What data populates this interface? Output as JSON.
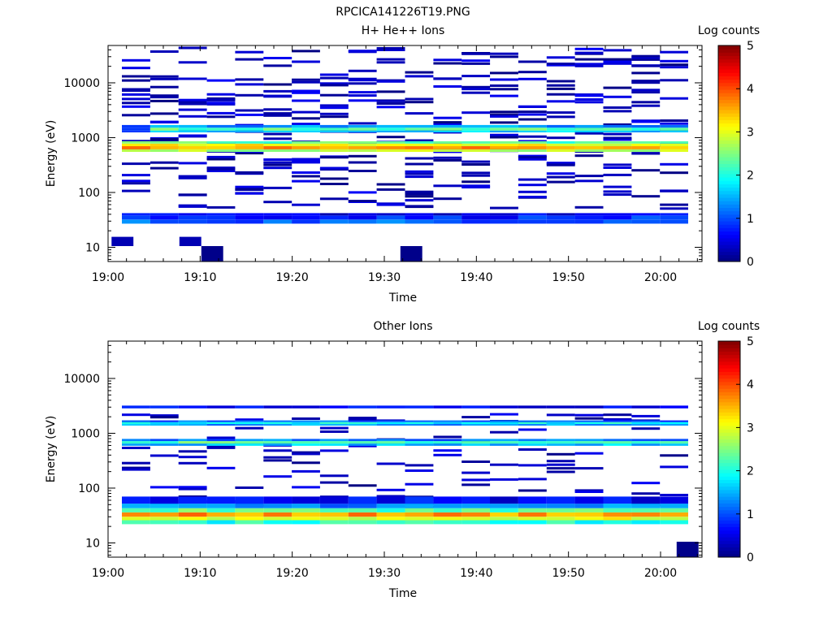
{
  "figure": {
    "title": "RPCICA141226T19.PNG"
  },
  "chart_data": [
    {
      "type": "heatmap",
      "title": "H+ He++ Ions",
      "xlabel": "Time",
      "ylabel": "Energy (eV)",
      "x_ticks": [
        "19:00",
        "19:10",
        "19:20",
        "19:30",
        "19:40",
        "19:50",
        "20:00"
      ],
      "y_ticks": [
        "10",
        "100",
        "1000",
        "10000"
      ],
      "y_scale": "log",
      "ylim": [
        5.5,
        48000
      ],
      "colorbar": {
        "label": "Log counts",
        "ticks": [
          "0",
          "1",
          "2",
          "3",
          "4",
          "5"
        ],
        "range": [
          0,
          5
        ],
        "colormap": "jet"
      },
      "bands": [
        {
          "energy": [
            1250,
            1350
          ],
          "value": 1.6
        },
        {
          "energy": [
            1350,
            1520
          ],
          "value": 2.3
        },
        {
          "energy": [
            1520,
            1700
          ],
          "value": 1.4
        },
        {
          "energy": [
            550,
            610
          ],
          "value": 2.8
        },
        {
          "energy": [
            610,
            700
          ],
          "value": 3.6
        },
        {
          "energy": [
            700,
            780
          ],
          "value": 3.1
        },
        {
          "energy": [
            780,
            860
          ],
          "value": 2.3
        },
        {
          "energy": [
            27,
            32
          ],
          "value": 1.1
        },
        {
          "energy": [
            32,
            38
          ],
          "value": 0.8
        },
        {
          "energy": [
            38,
            42
          ],
          "value": 0.5
        }
      ],
      "low_blocks": [
        {
          "t": [
            1.5,
            11.0
          ],
          "energy": [
            10.5,
            15.5
          ],
          "value": 0.25
        },
        {
          "t": [
            31.0,
            40.5
          ],
          "energy": [
            10.5,
            15.5
          ],
          "value": 0.25
        },
        {
          "t": [
            40.5,
            50.0
          ],
          "energy": [
            5.5,
            10.5
          ],
          "value": 0.05
        },
        {
          "t": [
            127.0,
            136.5
          ],
          "energy": [
            5.5,
            10.5
          ],
          "value": 0.05
        }
      ]
    },
    {
      "type": "heatmap",
      "title": "Other Ions",
      "xlabel": "Time",
      "ylabel": "Energy (eV)",
      "x_ticks": [
        "19:00",
        "19:10",
        "19:20",
        "19:30",
        "19:40",
        "19:50",
        "20:00"
      ],
      "y_ticks": [
        "10",
        "100",
        "1000",
        "10000"
      ],
      "y_scale": "log",
      "ylim": [
        5.5,
        48000
      ],
      "colorbar": {
        "label": "Log counts",
        "ticks": [
          "0",
          "1",
          "2",
          "3",
          "4",
          "5"
        ],
        "range": [
          0,
          5
        ],
        "colormap": "jet"
      },
      "bands": [
        {
          "energy": [
            1380,
            1480
          ],
          "value": 1.4
        },
        {
          "energy": [
            1480,
            1600
          ],
          "value": 1.9
        },
        {
          "energy": [
            1600,
            1720
          ],
          "value": 1.1
        },
        {
          "energy": [
            2850,
            3200
          ],
          "value": 0.6
        },
        {
          "energy": [
            590,
            650
          ],
          "value": 1.6
        },
        {
          "energy": [
            650,
            720
          ],
          "value": 2.3
        },
        {
          "energy": [
            720,
            790
          ],
          "value": 1.2
        },
        {
          "energy": [
            22,
            26
          ],
          "value": 2.0
        },
        {
          "energy": [
            26,
            30
          ],
          "value": 3.0
        },
        {
          "energy": [
            30,
            36
          ],
          "value": 3.6
        },
        {
          "energy": [
            36,
            43
          ],
          "value": 2.3
        },
        {
          "energy": [
            43,
            52
          ],
          "value": 1.3
        },
        {
          "energy": [
            52,
            70
          ],
          "value": 0.6
        }
      ],
      "low_blocks": [
        {
          "t": [
            247.0,
            256.5
          ],
          "energy": [
            5.5,
            10.5
          ],
          "value": 0.05
        }
      ]
    }
  ]
}
